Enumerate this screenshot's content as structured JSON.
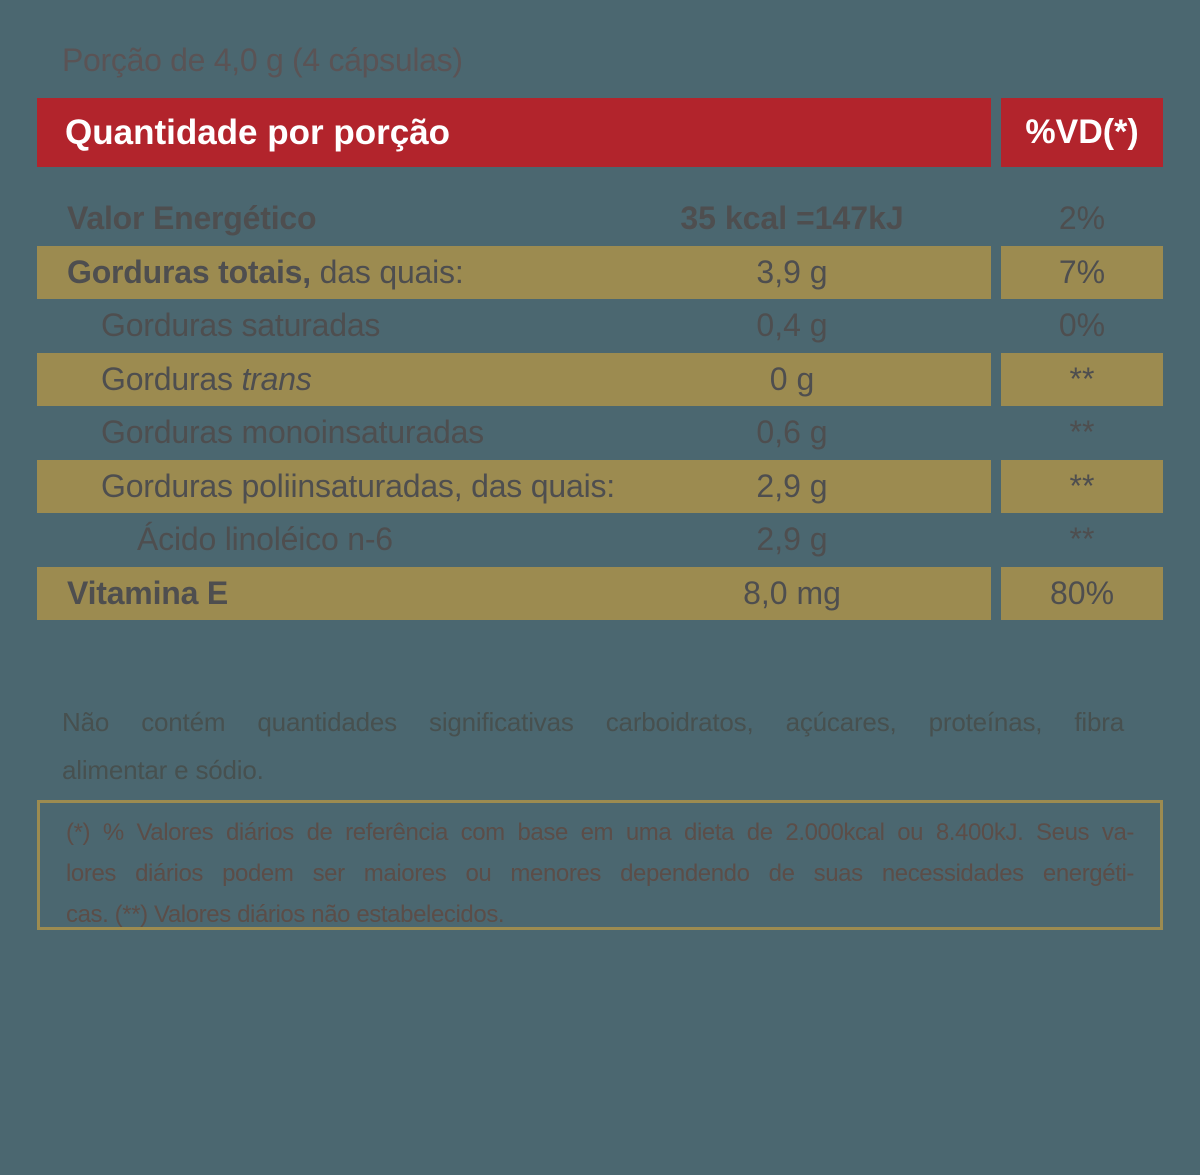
{
  "colors": {
    "background": "#4B6770",
    "accent_gold": "#9C8B50",
    "accent_red": "#B2242C",
    "text_dark": "#4E4E4F",
    "text_serving": "#5A5355",
    "text_paragraph": "#47504F",
    "text_footnote": "#5B4D48",
    "text_on_red": "#FFFFFF"
  },
  "serving_line": "Porção de 4,0 g (4 cápsulas)",
  "header": {
    "quantity_label": "Quantidade por porção",
    "dv_label": "%VD(*)"
  },
  "table": {
    "rows": [
      {
        "b": "Valor Energético",
        "pre": "",
        "i": "",
        "post": "",
        "value": "35 kcal =147kJ",
        "value_bold": true,
        "dv": "2%",
        "gold": false,
        "indent": 0
      },
      {
        "b": "Gorduras totais,",
        "pre": "",
        "i": "",
        "post": " das quais:",
        "value": "3,9 g",
        "value_bold": false,
        "dv": "7%",
        "gold": true,
        "indent": 0
      },
      {
        "b": "",
        "pre": "",
        "i": "",
        "post": "Gorduras saturadas",
        "value": "0,4 g",
        "value_bold": false,
        "dv": "0%",
        "gold": false,
        "indent": 1
      },
      {
        "b": "",
        "pre": "Gorduras ",
        "i": "trans",
        "post": "",
        "value": "0 g",
        "value_bold": false,
        "dv": "**",
        "gold": true,
        "indent": 1
      },
      {
        "b": "",
        "pre": "",
        "i": "",
        "post": "Gorduras monoinsaturadas",
        "value": "0,6 g",
        "value_bold": false,
        "dv": "**",
        "gold": false,
        "indent": 1
      },
      {
        "b": "",
        "pre": "",
        "i": "",
        "post": "Gorduras poliinsaturadas, das quais:",
        "value": "2,9 g",
        "value_bold": false,
        "dv": "**",
        "gold": true,
        "indent": 1
      },
      {
        "b": "",
        "pre": "",
        "i": "",
        "post": "Ácido linoléico n-6",
        "value": "2,9 g",
        "value_bold": false,
        "dv": "**",
        "gold": false,
        "indent": 2
      },
      {
        "b": "Vitamina E",
        "pre": "",
        "i": "",
        "post": "",
        "value": "8,0 mg",
        "value_bold": false,
        "dv": "80%",
        "gold": true,
        "indent": 0
      }
    ]
  },
  "notes": {
    "lines": [
      "Não contém quantidades significativas carboidratos, açúcares, proteínas, fibra",
      "alimentar e sódio."
    ]
  },
  "footnote": {
    "lines": [
      "(*) % Valores diários de referência com base em uma dieta de 2.000kcal ou 8.400kJ. Seus va-",
      "lores diários podem ser maiores ou menores dependendo de suas necessidades energéti-",
      "cas. (**) Valores diários não estabelecidos."
    ]
  }
}
